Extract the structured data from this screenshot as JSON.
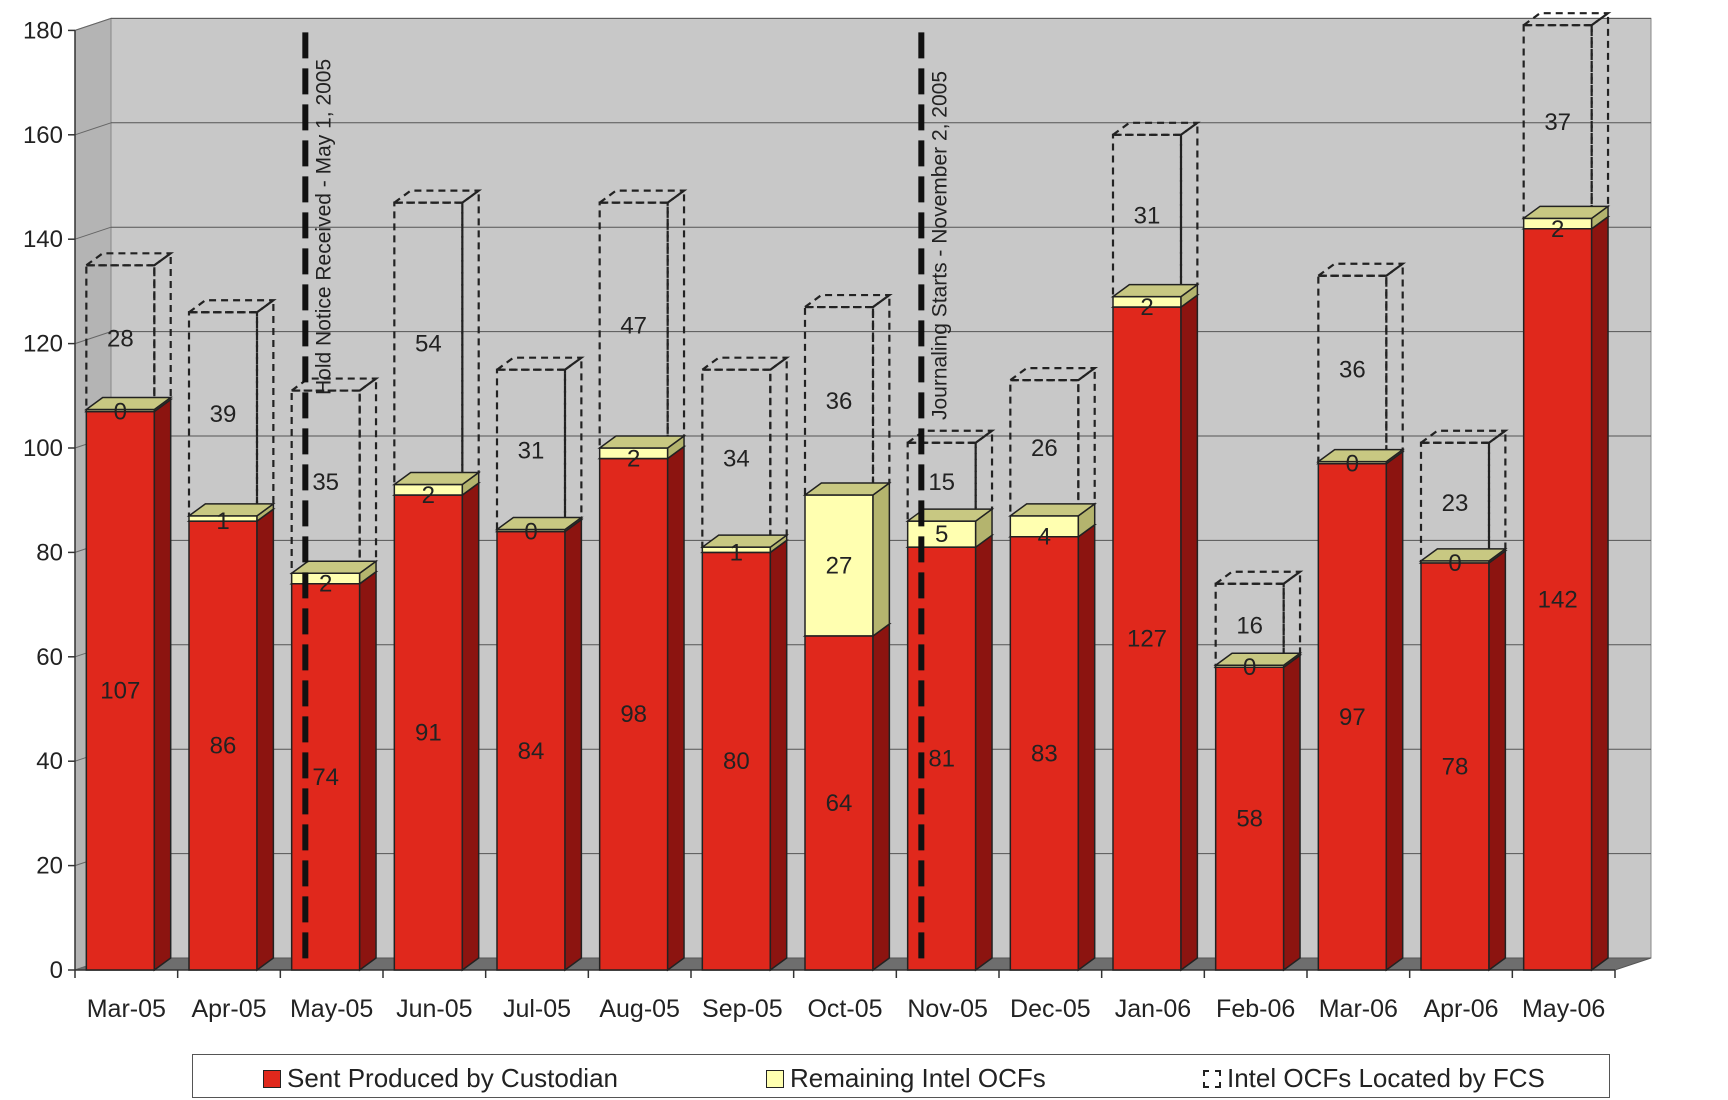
{
  "chart_data": {
    "type": "bar",
    "stacked": true,
    "three_d": true,
    "categories": [
      "Mar-05",
      "Apr-05",
      "May-05",
      "Jun-05",
      "Jul-05",
      "Aug-05",
      "Sep-05",
      "Oct-05",
      "Nov-05",
      "Dec-05",
      "Jan-06",
      "Feb-06",
      "Mar-06",
      "Apr-06",
      "May-06"
    ],
    "series": [
      {
        "name": "Sent Produced by Custodian",
        "color": "#e0281c",
        "style": "solid",
        "values": [
          107,
          86,
          74,
          91,
          84,
          98,
          80,
          64,
          81,
          83,
          127,
          58,
          97,
          78,
          142
        ]
      },
      {
        "name": "Remaining Intel OCFs",
        "color": "#ffffb0",
        "style": "solid",
        "values": [
          0,
          1,
          2,
          2,
          0,
          2,
          1,
          27,
          5,
          4,
          2,
          0,
          0,
          0,
          2
        ]
      },
      {
        "name": "Intel OCFs Located by FCS",
        "color": "#ffffff",
        "style": "dashed",
        "values": [
          28,
          39,
          35,
          54,
          31,
          47,
          34,
          36,
          15,
          26,
          31,
          16,
          36,
          23,
          37
        ]
      }
    ],
    "ylim": [
      0,
      180
    ],
    "yticks": [
      "0",
      "20",
      "40",
      "60",
      "80",
      "100",
      "120",
      "140",
      "160",
      "180"
    ],
    "grid": true,
    "legend_position": "bottom",
    "annotations": [
      {
        "text": "Hold Notice Received - May 1, 2005",
        "after_category_index": 1
      },
      {
        "text": "Journaling Starts - November 2, 2005",
        "after_category_index": 7
      }
    ]
  }
}
